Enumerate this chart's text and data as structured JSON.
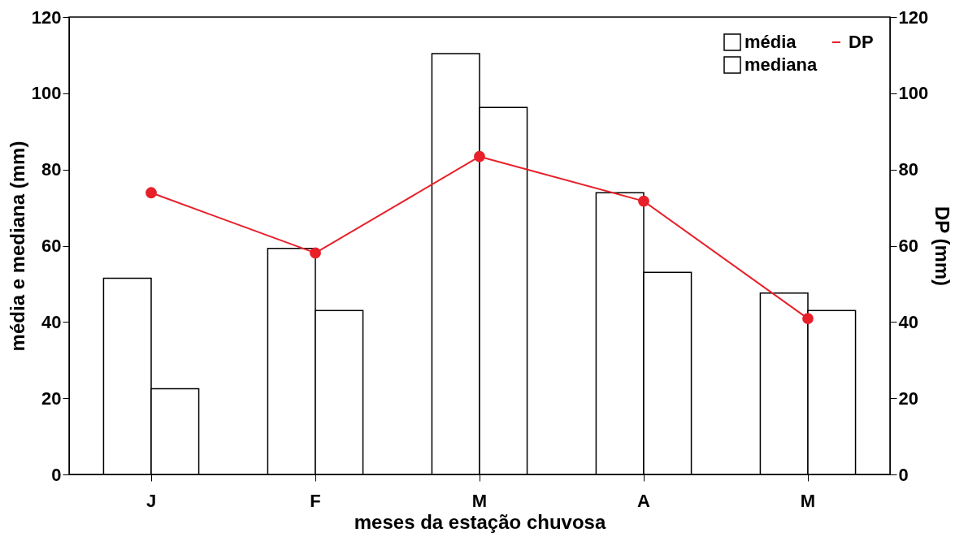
{
  "chart_data": {
    "type": "bar",
    "xlabel": "meses da estação chuvosa",
    "ylabel": "média e mediana  (mm)",
    "y2label": "DP (mm)",
    "categories": [
      "J",
      "F",
      "M",
      "A",
      "M"
    ],
    "series": [
      {
        "name": "média",
        "color": "#ffffff",
        "values": [
          51.5,
          59.3,
          110.4,
          73.9,
          47.6
        ]
      },
      {
        "name": "mediana",
        "color": "#ffffff",
        "values": [
          22.5,
          43,
          96.3,
          53,
          43
        ]
      },
      {
        "name": "DP",
        "color": "#e8202a",
        "type": "line",
        "axis": "y2",
        "marker": "circle",
        "values": [
          73.9,
          58.1,
          83.4,
          71.7,
          40.9
        ]
      }
    ],
    "ylim": [
      0,
      120
    ],
    "yticks": [
      0,
      20,
      40,
      60,
      80,
      100,
      120
    ],
    "y2lim": [
      0,
      120
    ],
    "y2ticks": [
      0,
      20,
      40,
      60,
      80,
      100,
      120
    ],
    "grid": false,
    "legend": "top right"
  }
}
